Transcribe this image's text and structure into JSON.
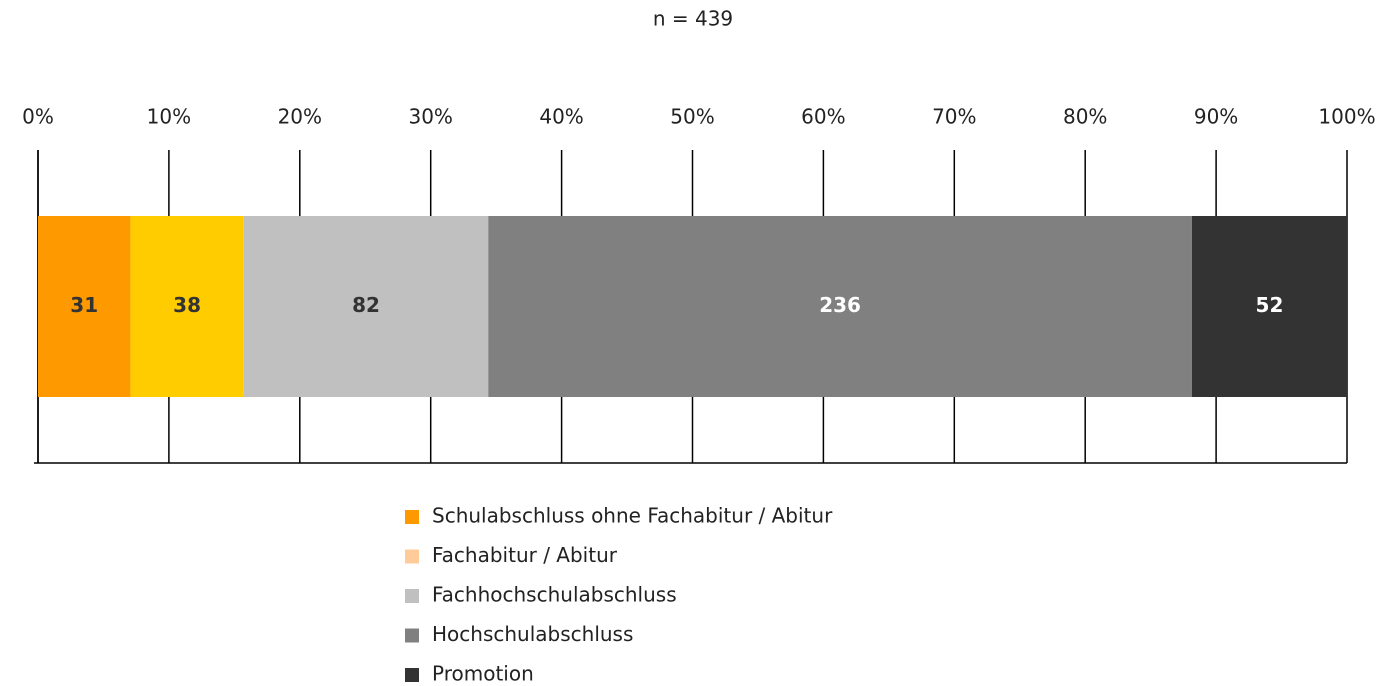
{
  "chart_data": {
    "type": "stacked_bar_100",
    "subtitle": "n = 439",
    "categories": [
      null
    ],
    "series": [
      {
        "name": "Schulabschluss ohne Fachabitur / Abitur",
        "color": "#ff9900",
        "legend_color": "#ff9900",
        "label_color": "#333333",
        "values": [
          31
        ]
      },
      {
        "name": "Fachabitur / Abitur",
        "color": "#ffcc00",
        "legend_color": "#ffcc99",
        "label_color": "#333333",
        "values": [
          38
        ]
      },
      {
        "name": "Fachhochschulabschluss",
        "color": "#c0c0c0",
        "legend_color": "#c0c0c0",
        "label_color": "#333333",
        "values": [
          82
        ]
      },
      {
        "name": "Hochschulabschluss",
        "color": "#808080",
        "legend_color": "#808080",
        "label_color": "#ffffff",
        "values": [
          236
        ]
      },
      {
        "name": "Promotion",
        "color": "#333333",
        "legend_color": "#333333",
        "label_color": "#ffffff",
        "values": [
          52
        ]
      }
    ],
    "xlim": [
      0,
      100
    ],
    "xticks": [
      {
        "value": 0,
        "label": "0%"
      },
      {
        "value": 10,
        "label": "10%"
      },
      {
        "value": 20,
        "label": "20%"
      },
      {
        "value": 30,
        "label": "30%"
      },
      {
        "value": 40,
        "label": "40%"
      },
      {
        "value": 50,
        "label": "50%"
      },
      {
        "value": 60,
        "label": "60%"
      },
      {
        "value": 70,
        "label": "70%"
      },
      {
        "value": 80,
        "label": "80%"
      },
      {
        "value": 90,
        "label": "90%"
      },
      {
        "value": 100,
        "label": "100%"
      }
    ],
    "grid": true
  }
}
